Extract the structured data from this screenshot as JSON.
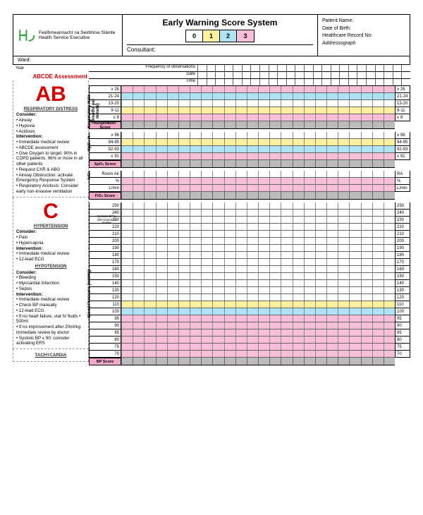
{
  "colors": {
    "white": "#ffffff",
    "yellow": "#fff0a0",
    "blue": "#aee3f5",
    "pink": "#f8bdd8",
    "grey": "#bfbfbf",
    "red": "#d40000",
    "border": "#000000",
    "gridline": "#888888"
  },
  "logo": {
    "line1": "Feidhmeannacht na Seirbhíse Sláinte",
    "line2": "Health Service Executive"
  },
  "title": "Early Warning Score System",
  "score_legend": [
    {
      "n": "0",
      "bg": "#ffffff"
    },
    {
      "n": "1",
      "bg": "#fff0a0"
    },
    {
      "n": "2",
      "bg": "#aee3f5"
    },
    {
      "n": "3",
      "bg": "#f8bdd8"
    }
  ],
  "consultant_label": "Consultant:",
  "patient_fields": [
    "Patient Name:",
    "Date of Birth:",
    "Healthcare Record No:",
    "Addressograph"
  ],
  "ward_label": "Ward:",
  "year_label": "Year",
  "top_rows": [
    "Frequency of observations",
    "Date",
    "Time"
  ],
  "grid_columns": 24,
  "abcde_label": "ABCDE Assessment",
  "ab": {
    "letter": "AB",
    "heading": "RESPIRATORY DISTRESS",
    "consider": [
      "Airway",
      "Hypoxia",
      "Acidosis"
    ],
    "intervention": [
      "Immediate medical review",
      "ABCDE assessment",
      "Give Oxygen to target: 90% in COPD patients, 96% or more in all other patients",
      "Request CXR & ABG",
      "Airway Obstruction: activate Emergency Response System",
      "Respiratory Acidosis: Consider early non-invasive ventilation"
    ]
  },
  "c": {
    "letter": "C",
    "hypertension": {
      "heading": "HYPERTENSION",
      "consider": [
        "Pain",
        "Hypercapnia"
      ],
      "intervention": [
        "Immediate medical review",
        "12-lead ECG"
      ]
    },
    "hypotension": {
      "heading": "HYPOTENSION",
      "consider": [
        "Bleeding",
        "Myocardial Infarction",
        "Sepsis"
      ],
      "intervention": [
        "Immediate medical review",
        "Check BP manually",
        "12-lead ECG",
        "If no heart failure, stat IV fluids • 500ml",
        "If no improvement after 20ml/kg: immediate review by doctor",
        "Systolic BP ≤ 90: consider activating ERS"
      ]
    }
  },
  "tachycardia": "TACHYCARDIA",
  "sections": {
    "resp": {
      "vlabel": "Respiratory Rate\n(Breaths per minute)",
      "rows": [
        {
          "l": "≥ 25",
          "r": "≥ 25",
          "bg": "#f8bdd8"
        },
        {
          "l": "21-24",
          "r": "21-24",
          "bg": "#aee3f5"
        },
        {
          "l": "13-20",
          "r": "13-20",
          "bg": "#ffffff"
        },
        {
          "l": "9-11",
          "r": "9-11",
          "bg": "#fff0a0"
        },
        {
          "l": "≤ 8",
          "r": "≤ 8",
          "bg": "#f8bdd8"
        }
      ],
      "score_label": "Respiration Score"
    },
    "spo2": {
      "vlabel": "SpO₂ %",
      "rows": [
        {
          "l": "≥ 96",
          "r": "≥ 96",
          "bg": "#ffffff"
        },
        {
          "l": "94-95",
          "r": "94-95",
          "bg": "#fff0a0"
        },
        {
          "l": "92-93",
          "r": "92-93",
          "bg": "#aee3f5"
        },
        {
          "l": "≤ 91",
          "r": "≤ 91",
          "bg": "#f8bdd8"
        }
      ],
      "score_label": "SpO₂ Score"
    },
    "fio2": {
      "vlabel": "FiO₂",
      "rows": [
        {
          "l": "Room Air",
          "r": "RA",
          "bg": "#ffffff"
        },
        {
          "l": "%",
          "r": "%",
          "bg": "#f8bdd8"
        },
        {
          "l": "L/min",
          "r": "L/min",
          "bg": "#f8bdd8"
        }
      ],
      "score_label": "FiO₂ Score"
    },
    "bp": {
      "vlabel": "Blood Pressure\n(mmHg)",
      "note": "Systolic BP ≥ 200 Doctor to review",
      "rows": [
        {
          "l": "250",
          "r": "250",
          "bg": "#ffffff"
        },
        {
          "l": "240",
          "r": "240",
          "bg": "#ffffff"
        },
        {
          "l": "230",
          "r": "230",
          "bg": "#ffffff"
        },
        {
          "l": "220",
          "r": "220",
          "bg": "#ffffff"
        },
        {
          "l": "210",
          "r": "210",
          "bg": "#ffffff"
        },
        {
          "l": "200",
          "r": "200",
          "bg": "#ffffff"
        },
        {
          "l": "190",
          "r": "190",
          "bg": "#ffffff"
        },
        {
          "l": "180",
          "r": "180",
          "bg": "#ffffff"
        },
        {
          "l": "170",
          "r": "170",
          "bg": "#ffffff"
        },
        {
          "l": "160",
          "r": "160",
          "bg": "#ffffff"
        },
        {
          "l": "150",
          "r": "150",
          "bg": "#ffffff"
        },
        {
          "l": "140",
          "r": "140",
          "bg": "#ffffff"
        },
        {
          "l": "130",
          "r": "130",
          "bg": "#ffffff"
        },
        {
          "l": "120",
          "r": "120",
          "bg": "#ffffff"
        },
        {
          "l": "110",
          "r": "110",
          "bg": "#fff0a0"
        },
        {
          "l": "100",
          "r": "100",
          "bg": "#aee3f5"
        },
        {
          "l": "95",
          "r": "95",
          "bg": "#f8bdd8"
        },
        {
          "l": "90",
          "r": "90",
          "bg": "#f8bdd8"
        },
        {
          "l": "85",
          "r": "85",
          "bg": "#f8bdd8"
        },
        {
          "l": "80",
          "r": "80",
          "bg": "#f8bdd8"
        },
        {
          "l": "75",
          "r": "75",
          "bg": "#f8bdd8"
        },
        {
          "l": "70",
          "r": "70",
          "bg": "#f8bdd8"
        }
      ],
      "score_label": "BP Score"
    }
  }
}
